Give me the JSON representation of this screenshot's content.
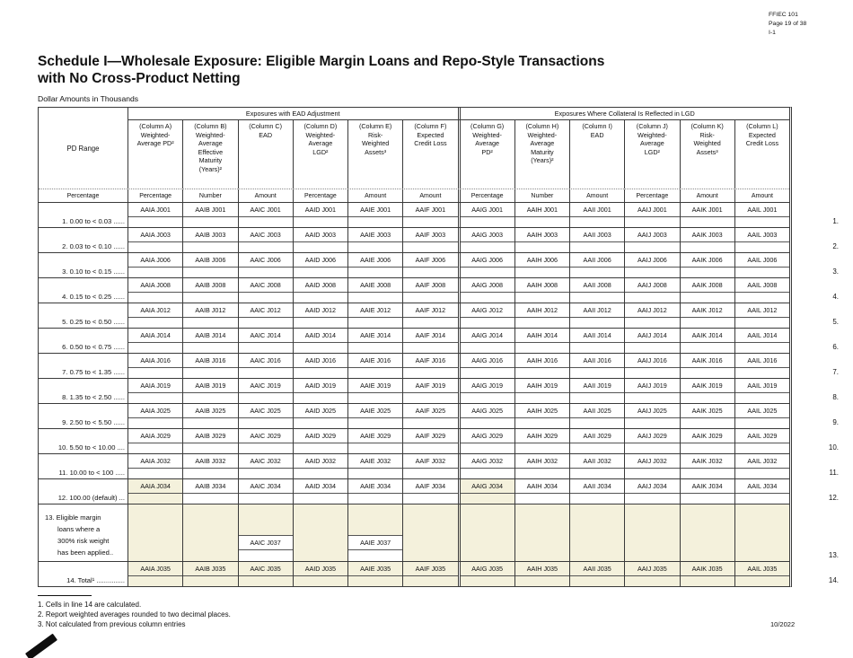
{
  "page": {
    "header_right": [
      "FFIEC 101",
      "Page 19 of 38",
      "I-1"
    ],
    "title_line1": "Schedule I—Wholesale Exposure: Eligible Margin Loans and Repo-Style Transactions",
    "title_line2": "with No Cross-Product Netting",
    "subtitle": "Dollar Amounts in Thousands",
    "footnotes": [
      "1. Cells in line 14 are calculated.",
      "2. Report weighted averages rounded to two decimal places.",
      "3. Not calculated from previous column entries"
    ],
    "footer_date": "10/2022"
  },
  "table": {
    "pd_range_header": "PD Range",
    "pd_units": "Percentage",
    "group_headers": [
      "Exposures with EAD Adjustment",
      "Exposures Where Collateral Is Reflected in LGD"
    ],
    "shaded_color": "#f4f1dc",
    "columns": [
      {
        "letter": "A",
        "prefix": "AAIA",
        "title": "(Column A)\nWeighted-\nAverage PD²",
        "unit": "Percentage"
      },
      {
        "letter": "B",
        "prefix": "AAIB",
        "title": "(Column B)\nWeighted-\nAverage\nEffective\nMaturity\n(Years)²",
        "unit": "Number"
      },
      {
        "letter": "C",
        "prefix": "AAIC",
        "title": "(Column C)\nEAD",
        "unit": "Amount"
      },
      {
        "letter": "D",
        "prefix": "AAID",
        "title": "(Column D)\nWeighted-\nAverage\nLGD²",
        "unit": "Percentage"
      },
      {
        "letter": "E",
        "prefix": "AAIE",
        "title": "(Column E)\nRisk-\nWeighted\nAssets³",
        "unit": "Amount"
      },
      {
        "letter": "F",
        "prefix": "AAIF",
        "title": "(Column F)\nExpected\nCredit Loss",
        "unit": "Amount"
      },
      {
        "letter": "G",
        "prefix": "AAIG",
        "title": "(Column G)\nWeighted-\nAverage\nPD²",
        "unit": "Percentage"
      },
      {
        "letter": "H",
        "prefix": "AAIH",
        "title": "(Column H)\nWeighted-\nAverage\nMaturity\n(Years)²",
        "unit": "Number"
      },
      {
        "letter": "I",
        "prefix": "AAII",
        "title": "(Column I)\nEAD",
        "unit": "Amount"
      },
      {
        "letter": "J",
        "prefix": "AAIJ",
        "title": "(Column J)\nWeighted-\nAverage\nLGD²",
        "unit": "Percentage"
      },
      {
        "letter": "K",
        "prefix": "AAIK",
        "title": "(Column K)\nRisk-\nWeighted\nAssets³",
        "unit": "Amount"
      },
      {
        "letter": "L",
        "prefix": "AAIL",
        "title": "(Column L)\nExpected\nCredit Loss",
        "unit": "Amount"
      }
    ],
    "rows": [
      {
        "num": "1.",
        "label": "1. 0.00 to < 0.03 ......",
        "code": "J001",
        "type": "normal"
      },
      {
        "num": "2.",
        "label": "2. 0.03 to < 0.10 ......",
        "code": "J003",
        "type": "normal"
      },
      {
        "num": "3.",
        "label": "3. 0.10 to < 0.15 ......",
        "code": "J006",
        "type": "normal"
      },
      {
        "num": "4.",
        "label": "4. 0.15 to < 0.25 ......",
        "code": "J008",
        "type": "normal"
      },
      {
        "num": "5.",
        "label": "5. 0.25 to < 0.50 ......",
        "code": "J012",
        "type": "normal"
      },
      {
        "num": "6.",
        "label": "6. 0.50 to < 0.75 ......",
        "code": "J014",
        "type": "normal"
      },
      {
        "num": "7.",
        "label": "7. 0.75 to < 1.35 ......",
        "code": "J016",
        "type": "normal"
      },
      {
        "num": "8.",
        "label": "8. 1.35 to < 2.50 ......",
        "code": "J019",
        "type": "normal"
      },
      {
        "num": "9.",
        "label": "9. 2.50 to < 5.50 ......",
        "code": "J025",
        "type": "normal"
      },
      {
        "num": "10.",
        "label": "10. 5.50 to < 10.00 ....",
        "code": "J029",
        "type": "normal"
      },
      {
        "num": "11.",
        "label": "11. 10.00 to < 100 .....",
        "code": "J032",
        "type": "normal"
      },
      {
        "num": "12.",
        "label": "12. 100.00 (default) ...",
        "code": "J034",
        "type": "normal",
        "shaded_cols": [
          0,
          6
        ]
      },
      {
        "num": "13.",
        "label_lines": [
          "13. Eligible margin",
          "loans where a",
          "300% risk weight",
          "has been applied.."
        ],
        "code": "J037",
        "type": "special",
        "entry_cols": [
          2,
          4
        ]
      },
      {
        "num": "14.",
        "label": "14. Total¹ ...............",
        "code": "J035",
        "type": "total"
      }
    ]
  }
}
